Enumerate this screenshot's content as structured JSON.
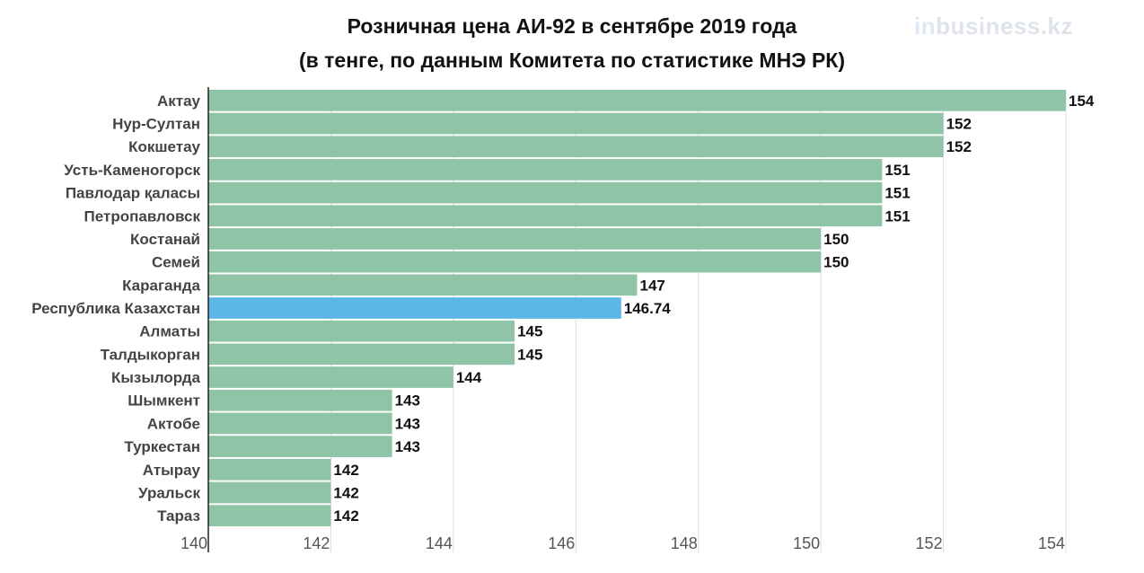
{
  "title_line1": "Розничная цена АИ-92 в сентябре 2019 года",
  "title_line2": "(в тенге, по данным Комитета по статистике МНЭ РК)",
  "logo": {
    "prefix": "in",
    "rest": "business.kz"
  },
  "colors": {
    "bar": "#8fc4a6",
    "highlight": "#5cb6e6",
    "grid": "#dddddd",
    "axis": "#222222"
  },
  "chart_data": {
    "type": "bar",
    "orientation": "horizontal",
    "title": "Розничная цена АИ-92 в сентябре 2019 года (в тенге, по данным Комитета по статистике МНЭ РК)",
    "categories": [
      "Актау",
      "Нур-Султан",
      "Кокшетау",
      "Усть-Каменогорск",
      "Павлодар қаласы",
      "Петропавловск",
      "Костанай",
      "Семей",
      "Караганда",
      "Республика Казахстан",
      "Алматы",
      "Талдыкорган",
      "Кызылорда",
      "Шымкент",
      "Актобе",
      "Туркестан",
      "Атырау",
      "Уральск",
      "Тараз"
    ],
    "values": [
      154,
      152,
      152,
      151,
      151,
      151,
      150,
      150,
      147,
      146.74,
      145,
      145,
      144,
      143,
      143,
      143,
      142,
      142,
      142
    ],
    "highlight": "Республика Казахстан",
    "xlim": [
      140,
      154
    ],
    "xticks": [
      140,
      142,
      144,
      146,
      148,
      150,
      152,
      154
    ],
    "grid": true
  }
}
